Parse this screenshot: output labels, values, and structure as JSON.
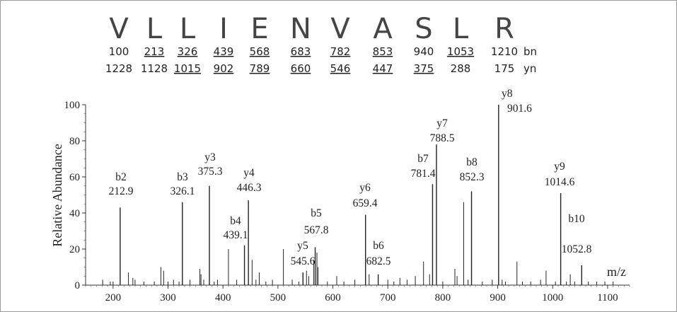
{
  "chart_data": {
    "type": "bar",
    "title": "",
    "xlabel": "m/z",
    "ylabel": "Relative Abundance",
    "xlim": [
      150,
      1140
    ],
    "ylim": [
      0,
      100
    ],
    "x_ticks": [
      "200",
      "300",
      "400",
      "500",
      "600",
      "700",
      "800",
      "900",
      "1000",
      "1100"
    ],
    "y_ticks": [
      "0",
      "20",
      "40",
      "60",
      "80",
      "100"
    ],
    "sequence": [
      {
        "aa": "V",
        "bn": "100",
        "yn": "1228",
        "bn_u": false,
        "yn_u": false
      },
      {
        "aa": "L",
        "bn": "213",
        "yn": "1128",
        "bn_u": true,
        "yn_u": false
      },
      {
        "aa": "L",
        "bn": "326",
        "yn": "1015",
        "bn_u": true,
        "yn_u": true
      },
      {
        "aa": "I",
        "bn": "439",
        "yn": "902",
        "bn_u": true,
        "yn_u": true
      },
      {
        "aa": "E",
        "bn": "568",
        "yn": "789",
        "bn_u": true,
        "yn_u": true
      },
      {
        "aa": "N",
        "bn": "683",
        "yn": "660",
        "bn_u": true,
        "yn_u": true
      },
      {
        "aa": "V",
        "bn": "782",
        "yn": "546",
        "bn_u": true,
        "yn_u": true
      },
      {
        "aa": "A",
        "bn": "853",
        "yn": "447",
        "bn_u": true,
        "yn_u": true
      },
      {
        "aa": "S",
        "bn": "940",
        "yn": "375",
        "bn_u": false,
        "yn_u": true
      },
      {
        "aa": "L",
        "bn": "1053",
        "yn": "288",
        "bn_u": true,
        "yn_u": false
      },
      {
        "aa": "R",
        "bn": "1210",
        "yn": "175",
        "bn_u": false,
        "yn_u": false
      }
    ],
    "bn_label": "bn",
    "yn_label": "yn",
    "peaks": [
      {
        "ion": "b2",
        "mz": 212.9,
        "mz_label": "212.9",
        "intensity": 43
      },
      {
        "ion": "b3",
        "mz": 326.1,
        "mz_label": "326.1",
        "intensity": 46
      },
      {
        "ion": "y3",
        "mz": 375.3,
        "mz_label": "375.3",
        "intensity": 55
      },
      {
        "ion": "y4",
        "mz": 446.3,
        "mz_label": "446.3",
        "intensity": 47
      },
      {
        "ion": "b4",
        "mz": 439.1,
        "mz_label": "439.1",
        "intensity": 22
      },
      {
        "ion": "y5",
        "mz": 545.6,
        "mz_label": "545.6",
        "intensity": 7
      },
      {
        "ion": "b5",
        "mz": 567.8,
        "mz_label": "567.8",
        "intensity": 21
      },
      {
        "ion": "y6",
        "mz": 659.4,
        "mz_label": "659.4",
        "intensity": 39
      },
      {
        "ion": "b6",
        "mz": 682.5,
        "mz_label": "682.5",
        "intensity": 6
      },
      {
        "ion": "b7",
        "mz": 781.4,
        "mz_label": "781.4",
        "intensity": 56
      },
      {
        "ion": "y7",
        "mz": 788.5,
        "mz_label": "788.5",
        "intensity": 78
      },
      {
        "ion": "b8",
        "mz": 852.3,
        "mz_label": "852.3",
        "intensity": 52
      },
      {
        "ion": "y8",
        "mz": 901.6,
        "mz_label": "901.6",
        "intensity": 100
      },
      {
        "ion": "y9",
        "mz": 1014.6,
        "mz_label": "1014.6",
        "intensity": 51
      },
      {
        "ion": "b10",
        "mz": 1052.8,
        "mz_label": "1052.8",
        "intensity": 11
      }
    ],
    "minor_peaks": [
      [
        181,
        3
      ],
      [
        195,
        2
      ],
      [
        200,
        2
      ],
      [
        228,
        7
      ],
      [
        236,
        4
      ],
      [
        240,
        3
      ],
      [
        256,
        2
      ],
      [
        275,
        2
      ],
      [
        287,
        10
      ],
      [
        292,
        8
      ],
      [
        300,
        2
      ],
      [
        310,
        3
      ],
      [
        320,
        2
      ],
      [
        340,
        3
      ],
      [
        358,
        9
      ],
      [
        360,
        6
      ],
      [
        365,
        3
      ],
      [
        384,
        2
      ],
      [
        390,
        3
      ],
      [
        410,
        20
      ],
      [
        425,
        3
      ],
      [
        453,
        14
      ],
      [
        460,
        3
      ],
      [
        466,
        7
      ],
      [
        478,
        2
      ],
      [
        490,
        3
      ],
      [
        510,
        20
      ],
      [
        526,
        3
      ],
      [
        538,
        2
      ],
      [
        552,
        8
      ],
      [
        556,
        5
      ],
      [
        565,
        14
      ],
      [
        571,
        18
      ],
      [
        573,
        10
      ],
      [
        590,
        2
      ],
      [
        607,
        5
      ],
      [
        620,
        2
      ],
      [
        640,
        3
      ],
      [
        666,
        6
      ],
      [
        700,
        3
      ],
      [
        711,
        2
      ],
      [
        722,
        4
      ],
      [
        735,
        3
      ],
      [
        750,
        5
      ],
      [
        765,
        13
      ],
      [
        776,
        6
      ],
      [
        800,
        2
      ],
      [
        822,
        9
      ],
      [
        826,
        5
      ],
      [
        838,
        46
      ],
      [
        846,
        3
      ],
      [
        872,
        2
      ],
      [
        890,
        3
      ],
      [
        908,
        3
      ],
      [
        914,
        2
      ],
      [
        935,
        13
      ],
      [
        945,
        2
      ],
      [
        960,
        2
      ],
      [
        978,
        3
      ],
      [
        988,
        8
      ],
      [
        1005,
        2
      ],
      [
        1025,
        2
      ],
      [
        1032,
        6
      ],
      [
        1040,
        2
      ],
      [
        1065,
        2
      ],
      [
        1080,
        2
      ],
      [
        1095,
        2
      ],
      [
        1110,
        2
      ]
    ]
  }
}
